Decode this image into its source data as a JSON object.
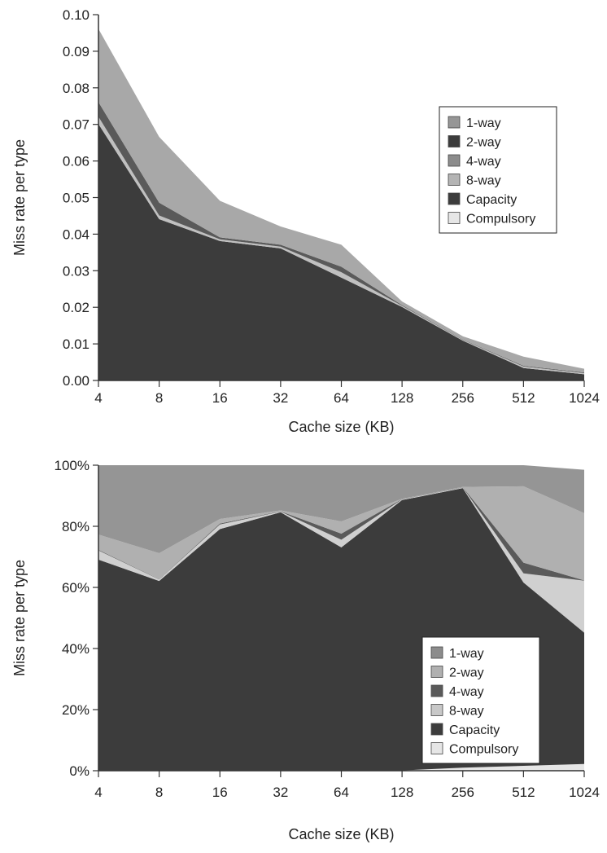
{
  "chart_data": [
    {
      "type": "area",
      "stacked": true,
      "categories": [
        "4",
        "8",
        "16",
        "32",
        "64",
        "128",
        "256",
        "512",
        "1024"
      ],
      "xlabel": "Cache size (KB)",
      "ylabel": "Miss rate per type",
      "ylim": [
        0,
        0.1
      ],
      "yticks": [
        "0.00",
        "0.01",
        "0.02",
        "0.03",
        "0.04",
        "0.05",
        "0.06",
        "0.07",
        "0.08",
        "0.09",
        "0.10"
      ],
      "legend_position": "right",
      "series": [
        {
          "name": "Compulsory",
          "color": "#e6e6e6",
          "values": [
            0.0001,
            0.0001,
            0.0001,
            0.0001,
            0.0001,
            0.0001,
            0.0001,
            0.0001,
            0.0001
          ]
        },
        {
          "name": "Capacity",
          "color": "#3c3c3c",
          "values": [
            0.07,
            0.044,
            0.038,
            0.036,
            0.028,
            0.02,
            0.0108,
            0.0033,
            0.0016
          ]
        },
        {
          "name": "8-way",
          "color": "#c0c0c0",
          "values": [
            0.002,
            0.001,
            0.0005,
            0.0005,
            0.0015,
            0.0003,
            0.0002,
            0.0004,
            0.0003
          ]
        },
        {
          "name": "4-way",
          "color": "#5a5a5a",
          "values": [
            0.004,
            0.0035,
            0.0005,
            0.0005,
            0.0015,
            0.0002,
            0.0001,
            0.0002,
            0.0002
          ]
        },
        {
          "name": "2-way",
          "color": "#a8a8a8",
          "values": [
            0.02,
            0.018,
            0.01,
            0.005,
            0.006,
            0.001,
            0.0009,
            0.0025,
            0.001
          ]
        },
        {
          "name": "1-way",
          "color": "#969696",
          "values": [
            0,
            0,
            0,
            0,
            0,
            0,
            0,
            0,
            0
          ]
        }
      ],
      "legend": [
        {
          "name": "1-way",
          "color": "#969696"
        },
        {
          "name": "2-way",
          "color": "#3c3c3c"
        },
        {
          "name": "4-way",
          "color": "#8c8c8c"
        },
        {
          "name": "8-way",
          "color": "#b4b4b4"
        },
        {
          "name": "Capacity",
          "color": "#3c3c3c"
        },
        {
          "name": "Compulsory",
          "color": "#e6e6e6"
        }
      ]
    },
    {
      "type": "area",
      "stacked": true,
      "categories": [
        "4",
        "8",
        "16",
        "32",
        "64",
        "128",
        "256",
        "512",
        "1024"
      ],
      "xlabel": "Cache size (KB)",
      "ylabel": "Miss rate per type",
      "ylim": [
        0,
        100
      ],
      "yticks": [
        "0%",
        "20%",
        "40%",
        "60%",
        "80%",
        "100%"
      ],
      "legend_position": "bottom-right",
      "series": [
        {
          "name": "Compulsory",
          "color": "#e6e6e6",
          "values": [
            0.1,
            0.1,
            0.1,
            0.1,
            0.1,
            0.1,
            1.0,
            1.6,
            2.2
          ]
        },
        {
          "name": "Capacity",
          "color": "#3c3c3c",
          "values": [
            69,
            62,
            79,
            84.5,
            73,
            88.5,
            91.5,
            60,
            43
          ]
        },
        {
          "name": "8-way",
          "color": "#d0d0d0",
          "values": [
            3,
            0.5,
            1.5,
            0.2,
            2.5,
            0.2,
            0.2,
            3,
            17
          ]
        },
        {
          "name": "4-way",
          "color": "#5a5a5a",
          "values": [
            0.2,
            0.1,
            0.3,
            0.1,
            2,
            0.1,
            0.1,
            3.5,
            0.1
          ]
        },
        {
          "name": "2-way",
          "color": "#b0b0b0",
          "values": [
            5,
            8.5,
            1.5,
            0.3,
            4,
            0.1,
            0.1,
            25,
            22
          ]
        },
        {
          "name": "1-way",
          "color": "#959595",
          "values": [
            22.7,
            28.8,
            17.6,
            14.8,
            18.4,
            11.0,
            7.1,
            6.9,
            14.2
          ]
        }
      ],
      "legend": [
        {
          "name": "1-way",
          "color": "#8c8c8c"
        },
        {
          "name": "2-way",
          "color": "#b0b0b0"
        },
        {
          "name": "4-way",
          "color": "#5a5a5a"
        },
        {
          "name": "8-way",
          "color": "#c8c8c8"
        },
        {
          "name": "Capacity",
          "color": "#3c3c3c"
        },
        {
          "name": "Compulsory",
          "color": "#e6e6e6"
        }
      ]
    }
  ]
}
